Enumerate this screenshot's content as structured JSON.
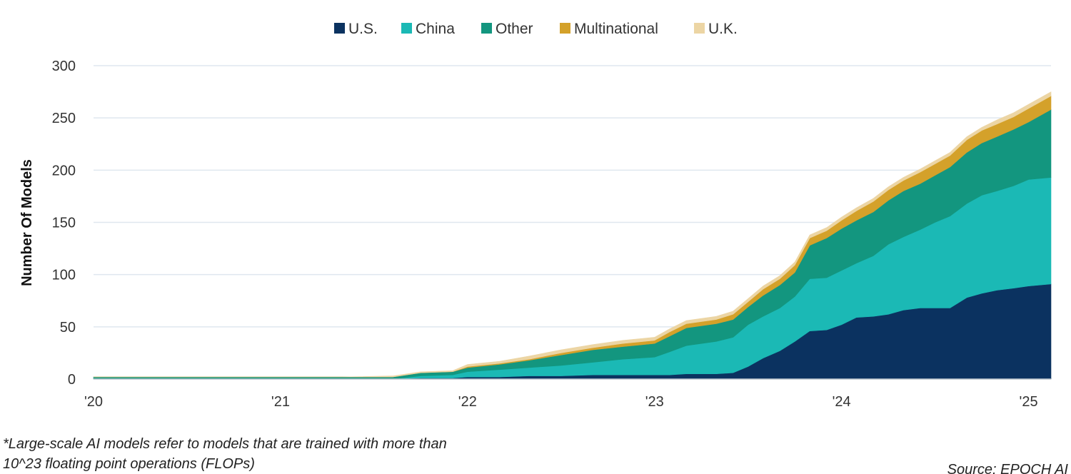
{
  "chart_data": {
    "type": "area",
    "stacked": true,
    "title": "",
    "xlabel": "",
    "ylabel": "Number Of Models",
    "ylim": [
      0,
      300
    ],
    "yticks": [
      0,
      50,
      100,
      150,
      200,
      250,
      300
    ],
    "xlim": [
      2020.0,
      2025.12
    ],
    "xticks": [
      {
        "value": 2020,
        "label": "'20"
      },
      {
        "value": 2021,
        "label": "'21"
      },
      {
        "value": 2022,
        "label": "'22"
      },
      {
        "value": 2023,
        "label": "'23"
      },
      {
        "value": 2024,
        "label": "'24"
      },
      {
        "value": 2025,
        "label": "'25"
      }
    ],
    "grid": true,
    "legend_position": "top",
    "x": [
      2020.0,
      2020.33,
      2020.67,
      2021.0,
      2021.33,
      2021.6,
      2021.75,
      2021.92,
      2022.0,
      2022.17,
      2022.33,
      2022.5,
      2022.67,
      2022.83,
      2023.0,
      2023.08,
      2023.17,
      2023.33,
      2023.42,
      2023.5,
      2023.58,
      2023.67,
      2023.75,
      2023.83,
      2023.92,
      2024.0,
      2024.08,
      2024.17,
      2024.25,
      2024.33,
      2024.42,
      2024.5,
      2024.58,
      2024.67,
      2024.75,
      2024.83,
      2024.92,
      2025.0,
      2025.12
    ],
    "series": [
      {
        "name": "U.S.",
        "color": "#0b3260",
        "values": [
          0,
          0,
          0,
          0,
          0,
          0,
          1,
          1,
          2,
          2,
          3,
          3,
          4,
          4,
          4,
          4,
          5,
          5,
          6,
          12,
          20,
          27,
          36,
          46,
          47,
          52,
          59,
          60,
          62,
          66,
          68,
          68,
          68,
          78,
          82,
          85,
          87,
          89,
          91
        ]
      },
      {
        "name": "China",
        "color": "#1bb9b5",
        "values": [
          0,
          0,
          0,
          0,
          0,
          0,
          2,
          3,
          5,
          7,
          8,
          10,
          12,
          15,
          17,
          22,
          27,
          31,
          34,
          40,
          40,
          41,
          43,
          50,
          50,
          52,
          52,
          58,
          67,
          70,
          75,
          82,
          88,
          90,
          94,
          95,
          98,
          102,
          102
        ]
      },
      {
        "name": "Other",
        "color": "#13967f",
        "values": [
          2,
          2,
          2,
          2,
          2,
          2,
          3,
          3,
          4,
          5,
          7,
          10,
          12,
          12,
          13,
          15,
          17,
          17,
          17,
          17,
          20,
          22,
          23,
          32,
          38,
          40,
          41,
          42,
          42,
          44,
          44,
          45,
          47,
          49,
          50,
          52,
          54,
          55,
          65
        ]
      },
      {
        "name": "Multinational",
        "color": "#d4a12a",
        "values": [
          0,
          0,
          0,
          0,
          0,
          0,
          0,
          0,
          1,
          1,
          1,
          2,
          2,
          3,
          3,
          4,
          4,
          4,
          5,
          5,
          6,
          6,
          7,
          7,
          7,
          8,
          9,
          10,
          10,
          10,
          11,
          11,
          11,
          12,
          12,
          12,
          12,
          13,
          13
        ]
      },
      {
        "name": "U.K.",
        "color": "#ecd5a4",
        "values": [
          0,
          0,
          0,
          0,
          0,
          1,
          1,
          1,
          2,
          2,
          3,
          3,
          3,
          3,
          3,
          3,
          3,
          3,
          3,
          3,
          3,
          3,
          3,
          3,
          3,
          3,
          3,
          3,
          3,
          3,
          3,
          3,
          3,
          3,
          3,
          4,
          4,
          4,
          4
        ]
      }
    ]
  },
  "footnote": {
    "line1": "*Large-scale AI models refer to models that are trained with more than",
    "line2": "10^23 floating point operations (FLOPs)"
  },
  "source": "Source: EPOCH AI",
  "colors": {
    "grid": "#dfe7ef",
    "axis": "#b9c3cc"
  }
}
